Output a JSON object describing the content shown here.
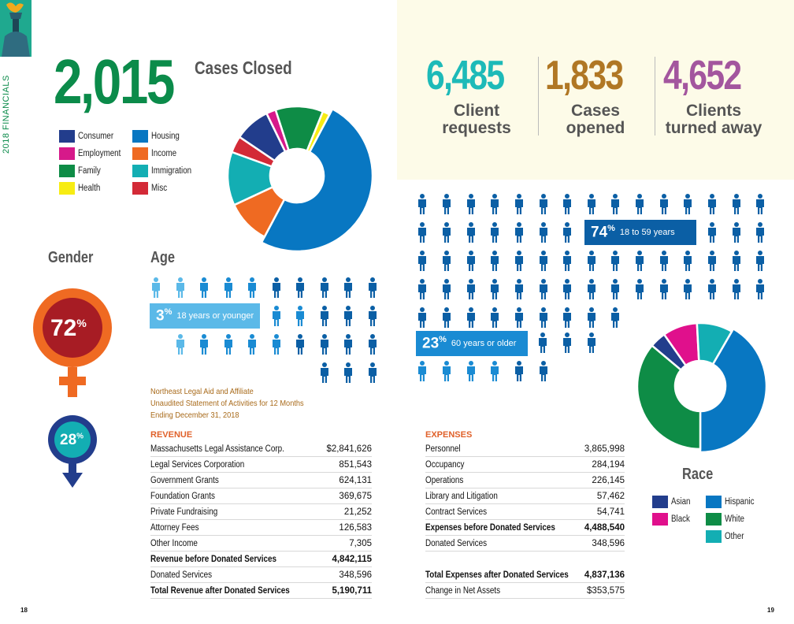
{
  "sidebar": {
    "label": "2018 FINANCIALS"
  },
  "cases_closed": {
    "number": "2,015",
    "label": "Cases Closed"
  },
  "case_legend": [
    {
      "label": "Consumer",
      "color": "#223d8c"
    },
    {
      "label": "Employment",
      "color": "#d6198a"
    },
    {
      "label": "Family",
      "color": "#0e8c46"
    },
    {
      "label": "Health",
      "color": "#f7ec13"
    },
    {
      "label": "Housing",
      "color": "#0877c2"
    },
    {
      "label": "Income",
      "color": "#ef6a22"
    },
    {
      "label": "Immigration",
      "color": "#13aeb3"
    },
    {
      "label": "Misc",
      "color": "#d32a37"
    }
  ],
  "stats": [
    {
      "number": "6,485",
      "label_line1": "Client",
      "label_line2": "requests",
      "color": "#1dbab8"
    },
    {
      "number": "1,833",
      "label_line1": "Cases",
      "label_line2": "opened",
      "color": "#b07724"
    },
    {
      "number": "4,652",
      "label_line1": "Clients",
      "label_line2": "turned away",
      "color": "#a3569e"
    }
  ],
  "gender": {
    "heading": "Gender",
    "female_pct": "72",
    "male_pct": "28",
    "pct_sign": "%"
  },
  "age": {
    "heading": "Age",
    "young": {
      "pct": "3",
      "label": "18 years or younger"
    },
    "adult": {
      "pct": "74",
      "label": "18 to 59 years"
    },
    "senior": {
      "pct": "23",
      "label": "60 years or older"
    }
  },
  "race": {
    "heading": "Race",
    "legend": [
      {
        "label": "Asian",
        "color": "#223d8c"
      },
      {
        "label": "Black",
        "color": "#e0108c"
      },
      {
        "label": "Hispanic",
        "color": "#0877c2"
      },
      {
        "label": "White",
        "color": "#0e8c46"
      },
      {
        "label": "Other",
        "color": "#13aeb3"
      }
    ]
  },
  "statement": {
    "line1": "Northeast Legal Aid and Affiliate",
    "line2": "Unaudited Statement of Activities for 12 Months",
    "line3": "Ending December 31, 2018"
  },
  "revenue": {
    "heading": "REVENUE",
    "rows": [
      {
        "name": "Massachusetts Legal Assistance Corp.",
        "value": "$2,841,626",
        "bold": false
      },
      {
        "name": "Legal Services Corporation",
        "value": "851,543",
        "bold": false
      },
      {
        "name": "Government Grants",
        "value": "624,131",
        "bold": false
      },
      {
        "name": "Foundation Grants",
        "value": "369,675",
        "bold": false
      },
      {
        "name": "Private Fundraising",
        "value": "21,252",
        "bold": false
      },
      {
        "name": "Attorney Fees",
        "value": "126,583",
        "bold": false
      },
      {
        "name": "Other Income",
        "value": "7,305",
        "bold": false
      },
      {
        "name": "Revenue before Donated Services",
        "value": "4,842,115",
        "bold": true
      },
      {
        "name": "Donated Services",
        "value": "348,596",
        "bold": false
      },
      {
        "name": "Total Revenue after Donated Services",
        "value": "5,190,711",
        "bold": true
      }
    ]
  },
  "expenses": {
    "heading": "EXPENSES",
    "rows": [
      {
        "name": "Personnel",
        "value": "3,865,998",
        "bold": false
      },
      {
        "name": "Occupancy",
        "value": "284,194",
        "bold": false
      },
      {
        "name": "Operations",
        "value": "226,145",
        "bold": false
      },
      {
        "name": "Library and Litigation",
        "value": "57,462",
        "bold": false
      },
      {
        "name": "Contract Services",
        "value": "54,741",
        "bold": false
      },
      {
        "name": "Expenses before Donated Services",
        "value": "4,488,540",
        "bold": true
      },
      {
        "name": "Donated Services",
        "value": "348,596",
        "bold": false
      },
      {
        "name": "",
        "value": "",
        "bold": false
      },
      {
        "name": "Total Expenses after Donated Services",
        "value": "4,837,136",
        "bold": true
      },
      {
        "name": "Change in Net Assets",
        "value": "$353,575",
        "bold": false
      }
    ]
  },
  "pages": {
    "left": "18",
    "right": "19"
  }
}
